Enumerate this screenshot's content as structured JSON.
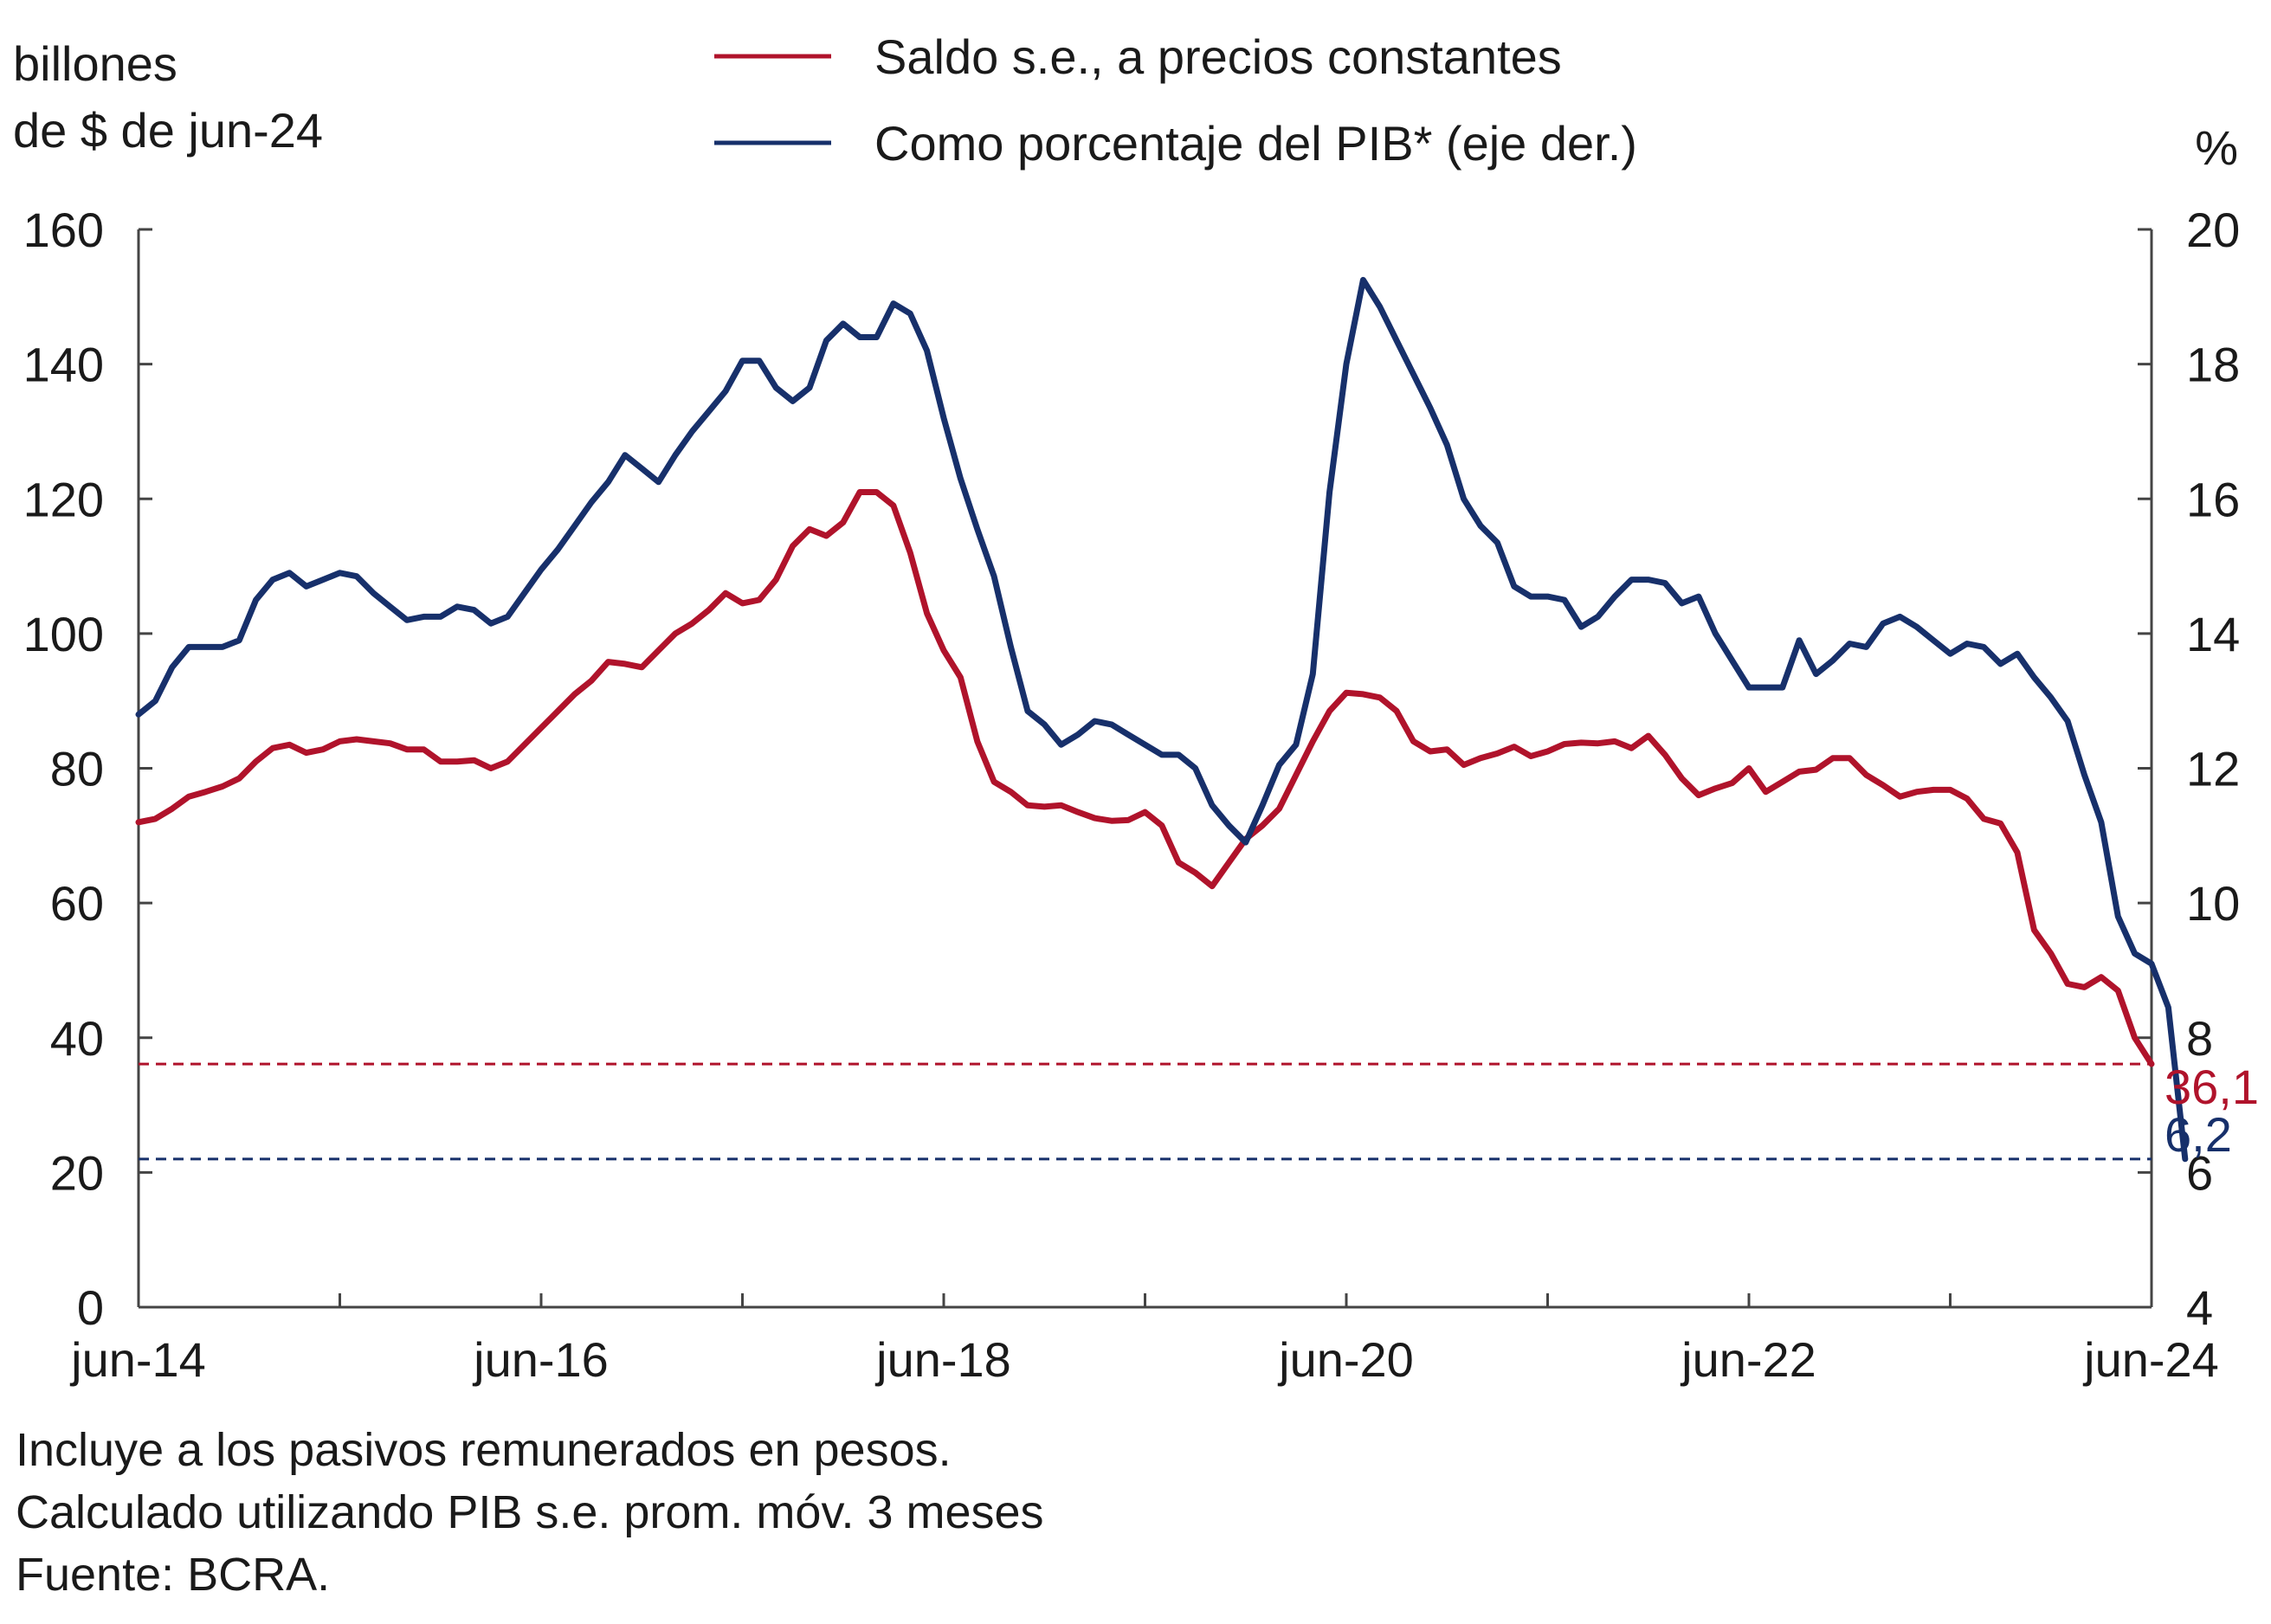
{
  "chart_data": {
    "type": "line",
    "y_left_label": [
      "billones",
      "de $ de jun-24"
    ],
    "y_right_label": "%",
    "y_left_lim": [
      0,
      160
    ],
    "y_left_ticks": [
      0,
      20,
      40,
      60,
      80,
      100,
      120,
      140,
      160
    ],
    "y_right_lim": [
      4,
      20
    ],
    "y_right_ticks": [
      4,
      6,
      8,
      10,
      12,
      14,
      16,
      18,
      20
    ],
    "x_range": [
      "2014-06",
      "2024-06"
    ],
    "x_tick_labels": [
      "jun-14",
      "jun-16",
      "jun-18",
      "jun-20",
      "jun-22",
      "jun-24"
    ],
    "grid": false,
    "legend_position": "top",
    "series": [
      {
        "name": "Saldo s.e., a precios constantes",
        "axis": "left",
        "color": "#b0132b",
        "end_label": "36,1",
        "values": [
          [
            "2014-06",
            72
          ],
          [
            "2014-07",
            72.5
          ],
          [
            "2014-08",
            74
          ],
          [
            "2014-09",
            75.8
          ],
          [
            "2014-10",
            76.5
          ],
          [
            "2014-11",
            77.3
          ],
          [
            "2014-12",
            78.5
          ],
          [
            "2015-01",
            81
          ],
          [
            "2015-02",
            83
          ],
          [
            "2015-03",
            83.5
          ],
          [
            "2015-04",
            82.3
          ],
          [
            "2015-05",
            82.8
          ],
          [
            "2015-06",
            84
          ],
          [
            "2015-07",
            84.3
          ],
          [
            "2015-08",
            84
          ],
          [
            "2015-09",
            83.7
          ],
          [
            "2015-10",
            82.8
          ],
          [
            "2015-11",
            82.8
          ],
          [
            "2015-12",
            81
          ],
          [
            "2016-01",
            81
          ],
          [
            "2016-02",
            81.2
          ],
          [
            "2016-03",
            80
          ],
          [
            "2016-04",
            81
          ],
          [
            "2016-05",
            83.5
          ],
          [
            "2016-06",
            86
          ],
          [
            "2016-07",
            88.5
          ],
          [
            "2016-08",
            91
          ],
          [
            "2016-09",
            93
          ],
          [
            "2016-10",
            95.8
          ],
          [
            "2016-11",
            95.5
          ],
          [
            "2016-12",
            95
          ],
          [
            "2017-01",
            97.5
          ],
          [
            "2017-02",
            100
          ],
          [
            "2017-03",
            101.5
          ],
          [
            "2017-04",
            103.5
          ],
          [
            "2017-05",
            106
          ],
          [
            "2017-06",
            104.5
          ],
          [
            "2017-07",
            105
          ],
          [
            "2017-08",
            108
          ],
          [
            "2017-09",
            113
          ],
          [
            "2017-10",
            115.5
          ],
          [
            "2017-11",
            114.5
          ],
          [
            "2017-12",
            116.5
          ],
          [
            "2018-01",
            121
          ],
          [
            "2018-02",
            121
          ],
          [
            "2018-03",
            119
          ],
          [
            "2018-04",
            112
          ],
          [
            "2018-05",
            103
          ],
          [
            "2018-06",
            97.5
          ],
          [
            "2018-07",
            93.5
          ],
          [
            "2018-08",
            84
          ],
          [
            "2018-09",
            78
          ],
          [
            "2018-10",
            76.5
          ],
          [
            "2018-11",
            74.5
          ],
          [
            "2018-12",
            74.3
          ],
          [
            "2019-01",
            74.5
          ],
          [
            "2019-02",
            73.5
          ],
          [
            "2019-03",
            72.6
          ],
          [
            "2019-04",
            72.2
          ],
          [
            "2019-05",
            72.3
          ],
          [
            "2019-06",
            73.5
          ],
          [
            "2019-07",
            71.5
          ],
          [
            "2019-08",
            66
          ],
          [
            "2019-09",
            64.5
          ],
          [
            "2019-10",
            62.5
          ],
          [
            "2019-11",
            66
          ],
          [
            "2019-12",
            69.5
          ],
          [
            "2020-01",
            71.5
          ],
          [
            "2020-02",
            74
          ],
          [
            "2020-03",
            79
          ],
          [
            "2020-04",
            84
          ],
          [
            "2020-05",
            88.5
          ],
          [
            "2020-06",
            91.2
          ],
          [
            "2020-07",
            91
          ],
          [
            "2020-08",
            90.5
          ],
          [
            "2020-09",
            88.5
          ],
          [
            "2020-10",
            84
          ],
          [
            "2020-11",
            82.5
          ],
          [
            "2020-12",
            82.8
          ],
          [
            "2021-01",
            80.5
          ],
          [
            "2021-02",
            81.5
          ],
          [
            "2021-03",
            82.2
          ],
          [
            "2021-04",
            83.2
          ],
          [
            "2021-05",
            81.8
          ],
          [
            "2021-06",
            82.5
          ],
          [
            "2021-07",
            83.6
          ],
          [
            "2021-08",
            83.8
          ],
          [
            "2021-09",
            83.7
          ],
          [
            "2021-10",
            84
          ],
          [
            "2021-11",
            83
          ],
          [
            "2021-12",
            84.8
          ],
          [
            "2022-01",
            82
          ],
          [
            "2022-02",
            78.5
          ],
          [
            "2022-03",
            76
          ],
          [
            "2022-04",
            77
          ],
          [
            "2022-05",
            77.8
          ],
          [
            "2022-06",
            80
          ],
          [
            "2022-07",
            76.5
          ],
          [
            "2022-08",
            78
          ],
          [
            "2022-09",
            79.5
          ],
          [
            "2022-10",
            79.8
          ],
          [
            "2022-11",
            81.5
          ],
          [
            "2022-12",
            81.5
          ],
          [
            "2023-01",
            79
          ],
          [
            "2023-02",
            77.5
          ],
          [
            "2023-03",
            75.8
          ],
          [
            "2023-04",
            76.5
          ],
          [
            "2023-05",
            76.8
          ],
          [
            "2023-06",
            76.8
          ],
          [
            "2023-07",
            75.5
          ],
          [
            "2023-08",
            72.5
          ],
          [
            "2023-09",
            71.8
          ],
          [
            "2023-10",
            67.5
          ],
          [
            "2023-11",
            56
          ],
          [
            "2023-12",
            52.5
          ],
          [
            "2024-01",
            48
          ],
          [
            "2024-02",
            47.5
          ],
          [
            "2024-03",
            49
          ],
          [
            "2024-04",
            47
          ],
          [
            "2024-05",
            40
          ],
          [
            "2024-06",
            36.1
          ]
        ]
      },
      {
        "name": "Como porcentaje del PIB* (eje der.)",
        "axis": "right",
        "color": "#17306b",
        "end_label": "6,2",
        "values": [
          [
            "2014-06",
            12.8
          ],
          [
            "2014-07",
            13
          ],
          [
            "2014-08",
            13.5
          ],
          [
            "2014-09",
            13.8
          ],
          [
            "2014-10",
            13.8
          ],
          [
            "2014-11",
            13.8
          ],
          [
            "2014-12",
            13.9
          ],
          [
            "2015-01",
            14.5
          ],
          [
            "2015-02",
            14.8
          ],
          [
            "2015-03",
            14.9
          ],
          [
            "2015-04",
            14.7
          ],
          [
            "2015-05",
            14.8
          ],
          [
            "2015-06",
            14.9
          ],
          [
            "2015-07",
            14.85
          ],
          [
            "2015-08",
            14.6
          ],
          [
            "2015-09",
            14.4
          ],
          [
            "2015-10",
            14.2
          ],
          [
            "2015-11",
            14.25
          ],
          [
            "2015-12",
            14.25
          ],
          [
            "2016-01",
            14.4
          ],
          [
            "2016-02",
            14.35
          ],
          [
            "2016-03",
            14.15
          ],
          [
            "2016-04",
            14.25
          ],
          [
            "2016-05",
            14.6
          ],
          [
            "2016-06",
            14.95
          ],
          [
            "2016-07",
            15.25
          ],
          [
            "2016-08",
            15.6
          ],
          [
            "2016-09",
            15.95
          ],
          [
            "2016-10",
            16.25
          ],
          [
            "2016-11",
            16.65
          ],
          [
            "2016-12",
            16.45
          ],
          [
            "2017-01",
            16.25
          ],
          [
            "2017-02",
            16.65
          ],
          [
            "2017-03",
            17
          ],
          [
            "2017-04",
            17.3
          ],
          [
            "2017-05",
            17.6
          ],
          [
            "2017-06",
            18.05
          ],
          [
            "2017-07",
            18.05
          ],
          [
            "2017-08",
            17.65
          ],
          [
            "2017-09",
            17.45
          ],
          [
            "2017-10",
            17.65
          ],
          [
            "2017-11",
            18.35
          ],
          [
            "2017-12",
            18.6
          ],
          [
            "2018-01",
            18.4
          ],
          [
            "2018-02",
            18.4
          ],
          [
            "2018-03",
            18.9
          ],
          [
            "2018-04",
            18.75
          ],
          [
            "2018-05",
            18.2
          ],
          [
            "2018-06",
            17.2
          ],
          [
            "2018-07",
            16.3
          ],
          [
            "2018-08",
            15.55
          ],
          [
            "2018-09",
            14.85
          ],
          [
            "2018-10",
            13.8
          ],
          [
            "2018-11",
            12.85
          ],
          [
            "2018-12",
            12.65
          ],
          [
            "2019-01",
            12.35
          ],
          [
            "2019-02",
            12.5
          ],
          [
            "2019-03",
            12.7
          ],
          [
            "2019-04",
            12.65
          ],
          [
            "2019-05",
            12.5
          ],
          [
            "2019-06",
            12.35
          ],
          [
            "2019-07",
            12.2
          ],
          [
            "2019-08",
            12.2
          ],
          [
            "2019-09",
            12
          ],
          [
            "2019-10",
            11.45
          ],
          [
            "2019-11",
            11.15
          ],
          [
            "2019-12",
            10.9
          ],
          [
            "2020-01",
            11.45
          ],
          [
            "2020-02",
            12.05
          ],
          [
            "2020-03",
            12.35
          ],
          [
            "2020-04",
            13.4
          ],
          [
            "2020-05",
            16.1
          ],
          [
            "2020-06",
            18
          ],
          [
            "2020-07",
            19.25
          ],
          [
            "2020-08",
            18.85
          ],
          [
            "2020-09",
            18.35
          ],
          [
            "2020-10",
            17.85
          ],
          [
            "2020-11",
            17.35
          ],
          [
            "2020-12",
            16.8
          ],
          [
            "2021-01",
            16
          ],
          [
            "2021-02",
            15.6
          ],
          [
            "2021-03",
            15.35
          ],
          [
            "2021-04",
            14.7
          ],
          [
            "2021-05",
            14.55
          ],
          [
            "2021-06",
            14.55
          ],
          [
            "2021-07",
            14.5
          ],
          [
            "2021-08",
            14.1
          ],
          [
            "2021-09",
            14.25
          ],
          [
            "2021-10",
            14.55
          ],
          [
            "2021-11",
            14.8
          ],
          [
            "2021-12",
            14.8
          ],
          [
            "2022-01",
            14.75
          ],
          [
            "2022-02",
            14.45
          ],
          [
            "2022-03",
            14.55
          ],
          [
            "2022-04",
            14
          ],
          [
            "2022-05",
            13.6
          ],
          [
            "2022-06",
            13.2
          ],
          [
            "2022-07",
            13.2
          ],
          [
            "2022-08",
            13.2
          ],
          [
            "2022-09",
            13.9
          ],
          [
            "2022-10",
            13.4
          ],
          [
            "2022-11",
            13.6
          ],
          [
            "2022-12",
            13.85
          ],
          [
            "2023-01",
            13.8
          ],
          [
            "2023-02",
            14.15
          ],
          [
            "2023-03",
            14.25
          ],
          [
            "2023-04",
            14.1
          ],
          [
            "2023-05",
            13.9
          ],
          [
            "2023-06",
            13.7
          ],
          [
            "2023-07",
            13.85
          ],
          [
            "2023-08",
            13.8
          ],
          [
            "2023-09",
            13.55
          ],
          [
            "2023-10",
            13.7
          ],
          [
            "2023-11",
            13.35
          ],
          [
            "2023-12",
            13.05
          ],
          [
            "2024-01",
            12.7
          ],
          [
            "2024-02",
            11.9
          ],
          [
            "2024-03",
            11.2
          ],
          [
            "2024-04",
            9.8
          ],
          [
            "2024-05",
            9.25
          ],
          [
            "2024-06",
            9.1
          ],
          [
            "2024-07",
            8.45
          ],
          [
            "2024-08",
            6.2
          ]
        ]
      }
    ],
    "reference_lines": [
      {
        "axis": "left",
        "value": 36.1,
        "color": "#b0132b",
        "style": "dashed"
      },
      {
        "axis": "right",
        "value": 6.2,
        "color": "#17306b",
        "style": "dashed"
      }
    ]
  },
  "notes": [
    "Incluye a los pasivos remunerados en pesos.",
    "Calculado utilizando PIB s.e. prom. móv. 3 meses",
    "Fuente: BCRA."
  ]
}
